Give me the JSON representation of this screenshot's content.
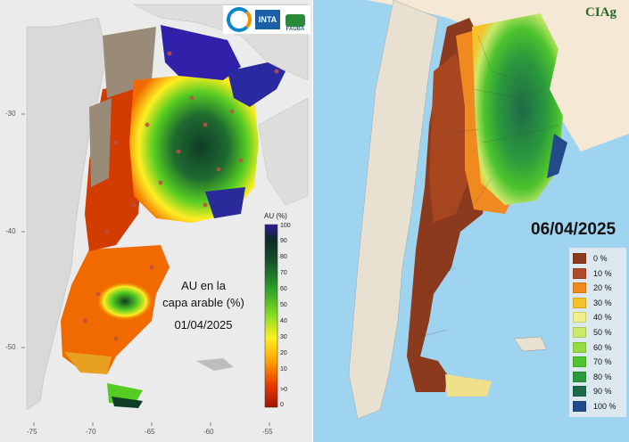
{
  "left_map": {
    "logos": [
      "INTA",
      "FAUBA"
    ],
    "legend_title": "AU (%)",
    "legend_ticks": [
      "100",
      "90",
      "80",
      "70",
      "60",
      "50",
      "40",
      "30",
      "20",
      "10",
      ">0",
      "0"
    ],
    "annotation_line1": "AU en la",
    "annotation_line2": "capa arable (%)",
    "date": "01/04/2025",
    "y_ticks": [
      "-30",
      "-40",
      "-50"
    ],
    "x_ticks": [
      "-75",
      "-70",
      "-65",
      "-60",
      "-55"
    ],
    "colors": {
      "dry": "#b22200",
      "orange": "#f06a00",
      "yellow": "#ffee22",
      "green": "#55cc22",
      "dark_green": "#0f3d25",
      "wet": "#3020aa",
      "no_data": "#9a8a78"
    }
  },
  "right_map": {
    "logo": "CIAg",
    "date": "06/04/2025",
    "legend": [
      {
        "label": "0 %",
        "color": "#8b3a1e"
      },
      {
        "label": "10 %",
        "color": "#b04a28"
      },
      {
        "label": "20 %",
        "color": "#f08a20"
      },
      {
        "label": "30 %",
        "color": "#f5c22a"
      },
      {
        "label": "40 %",
        "color": "#f0f08a"
      },
      {
        "label": "50 %",
        "color": "#cbe96a"
      },
      {
        "label": "60 %",
        "color": "#96dc45"
      },
      {
        "label": "70 %",
        "color": "#4fc42e"
      },
      {
        "label": "80 %",
        "color": "#2a9a3c"
      },
      {
        "label": "90 %",
        "color": "#1e6a48"
      },
      {
        "label": "100 %",
        "color": "#234a8a"
      }
    ]
  }
}
